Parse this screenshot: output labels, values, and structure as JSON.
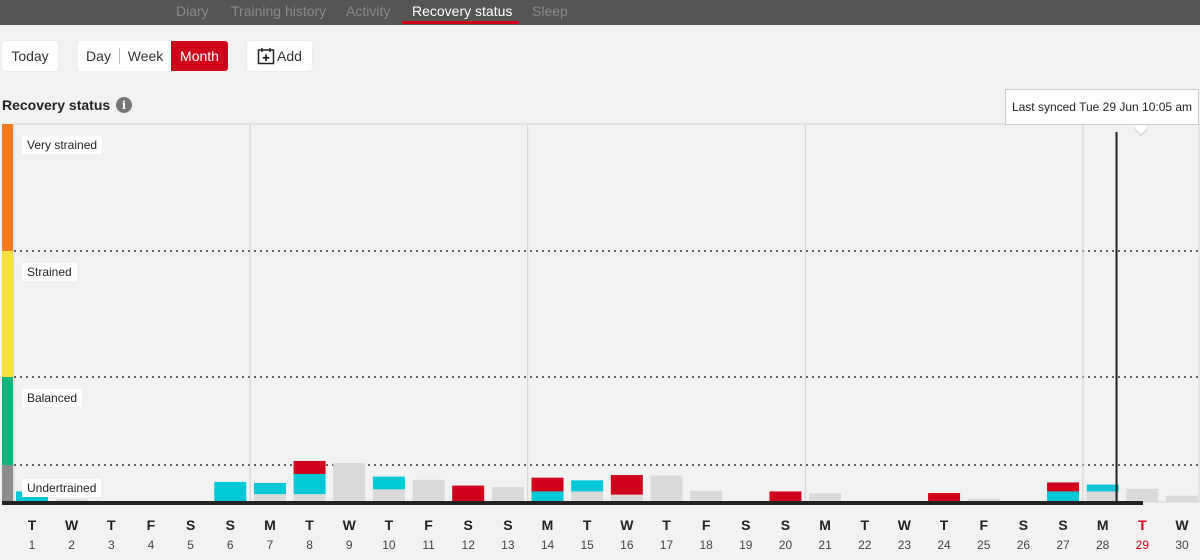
{
  "nav": {
    "tabs": [
      {
        "label": "Diary",
        "active": false
      },
      {
        "label": "Training history",
        "active": false
      },
      {
        "label": "Activity",
        "active": false
      },
      {
        "label": "Recovery status",
        "active": true
      },
      {
        "label": "Sleep",
        "active": false
      }
    ]
  },
  "toolbar": {
    "today_label": "Today",
    "range_options": [
      {
        "label": "Day",
        "active": false
      },
      {
        "label": "Week",
        "active": false
      },
      {
        "label": "Month",
        "active": true
      }
    ],
    "add_label": "Add"
  },
  "section": {
    "title": "Recovery status",
    "info_icon": "info-icon"
  },
  "tooltip": {
    "text": "Last synced Tue 29 Jun 10:05 am"
  },
  "colors": {
    "accent": "#d0021b",
    "red": "#d0021b",
    "cyan": "#00c8d7",
    "gray_bar": "#d9d9d9",
    "very_strained": "#f47a20",
    "strained": "#f7e03b",
    "balanced": "#0eb67e",
    "undertrained": "#8c8c8c"
  },
  "chart_data": {
    "type": "bar",
    "zones": [
      {
        "label": "Very strained",
        "color": "#f47a20",
        "range": [
          3,
          4
        ]
      },
      {
        "label": "Strained",
        "color": "#f7e03b",
        "range": [
          2,
          3
        ]
      },
      {
        "label": "Balanced",
        "color": "#0eb67e",
        "range": [
          0.7,
          2
        ]
      },
      {
        "label": "Undertrained",
        "color": "#8c8c8c",
        "range": [
          0,
          0.7
        ]
      }
    ],
    "current_day": 29,
    "days": [
      {
        "weekday": "T",
        "date": "1",
        "gray": 0,
        "cyan": 0.2,
        "red": 0
      },
      {
        "weekday": "W",
        "date": "2",
        "gray": 0.05,
        "cyan": 0,
        "red": 0
      },
      {
        "weekday": "T",
        "date": "3",
        "gray": 0,
        "cyan": 0,
        "red": 0
      },
      {
        "weekday": "F",
        "date": "4",
        "gray": 0,
        "cyan": 0,
        "red": 0
      },
      {
        "weekday": "S",
        "date": "5",
        "gray": 0,
        "cyan": 0,
        "red": 0
      },
      {
        "weekday": "S",
        "date": "6",
        "gray": 0,
        "cyan": 0.38,
        "red": 0
      },
      {
        "weekday": "M",
        "date": "7",
        "gray": 0.15,
        "cyan": 0.21,
        "red": 0
      },
      {
        "weekday": "T",
        "date": "8",
        "gray": 0.15,
        "cyan": 0.38,
        "red": 0.23
      },
      {
        "weekday": "W",
        "date": "9",
        "gray": 0.73,
        "cyan": 0,
        "red": 0
      },
      {
        "weekday": "T",
        "date": "10",
        "gray": 0.24,
        "cyan": 0.24,
        "red": 0
      },
      {
        "weekday": "F",
        "date": "11",
        "gray": 0.42,
        "cyan": 0,
        "red": 0
      },
      {
        "weekday": "S",
        "date": "12",
        "gray": 0,
        "cyan": 0,
        "red": 0.31
      },
      {
        "weekday": "S",
        "date": "13",
        "gray": 0.28,
        "cyan": 0,
        "red": 0
      },
      {
        "weekday": "M",
        "date": "14",
        "gray": 0,
        "cyan": 0.2,
        "red": 0.26
      },
      {
        "weekday": "T",
        "date": "15",
        "gray": 0.2,
        "cyan": 0.21,
        "red": 0
      },
      {
        "weekday": "W",
        "date": "16",
        "gray": 0.14,
        "cyan": 0,
        "red": 0.37
      },
      {
        "weekday": "T",
        "date": "17",
        "gray": 0.5,
        "cyan": 0,
        "red": 0
      },
      {
        "weekday": "F",
        "date": "18",
        "gray": 0.21,
        "cyan": 0,
        "red": 0
      },
      {
        "weekday": "S",
        "date": "19",
        "gray": 0,
        "cyan": 0,
        "red": 0
      },
      {
        "weekday": "S",
        "date": "20",
        "gray": 0,
        "cyan": 0,
        "red": 0.2
      },
      {
        "weekday": "M",
        "date": "21",
        "gray": 0.16,
        "cyan": 0,
        "red": 0
      },
      {
        "weekday": "T",
        "date": "22",
        "gray": 0,
        "cyan": 0,
        "red": 0
      },
      {
        "weekday": "W",
        "date": "23",
        "gray": 0,
        "cyan": 0,
        "red": 0
      },
      {
        "weekday": "T",
        "date": "24",
        "gray": 0,
        "cyan": 0,
        "red": 0.17
      },
      {
        "weekday": "F",
        "date": "25",
        "gray": 0.06,
        "cyan": 0,
        "red": 0
      },
      {
        "weekday": "S",
        "date": "26",
        "gray": 0,
        "cyan": 0,
        "red": 0
      },
      {
        "weekday": "S",
        "date": "27",
        "gray": 0,
        "cyan": 0.2,
        "red": 0.17
      },
      {
        "weekday": "M",
        "date": "28",
        "gray": 0.2,
        "cyan": 0.13,
        "red": 0
      },
      {
        "weekday": "T",
        "date": "29",
        "gray": 0.25,
        "cyan": 0,
        "red": 0
      },
      {
        "weekday": "W",
        "date": "30",
        "gray": 0.12,
        "cyan": 0,
        "red": 0
      }
    ]
  }
}
